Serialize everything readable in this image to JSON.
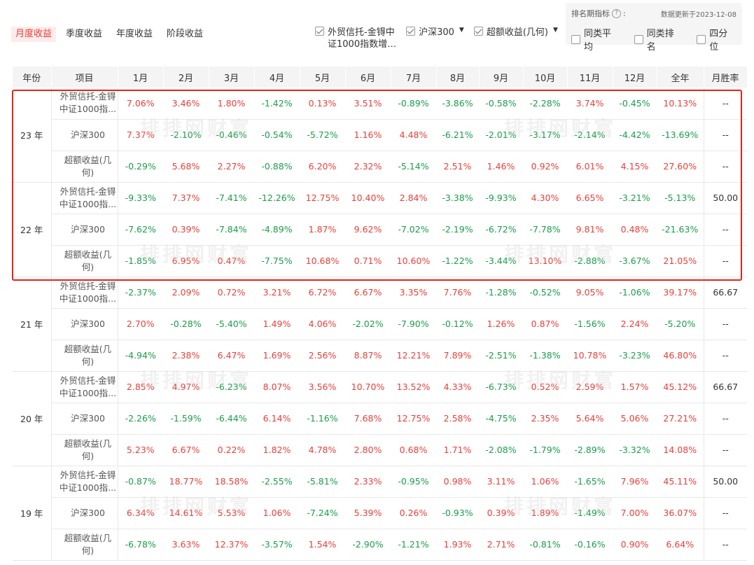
{
  "tabs": [
    "月度收益",
    "季度收益",
    "年度收益",
    "阶段收益"
  ],
  "legend": [
    {
      "label": "外贸信托-金锝中证1000指数增…",
      "line1": "外贸信托-金锝中",
      "line2": "证1000指数增…",
      "checked": true,
      "dropdown": false
    },
    {
      "label": "沪深300",
      "checked": true,
      "dropdown": true
    },
    {
      "label": "超额收益(几何)",
      "checked": true,
      "dropdown": true
    }
  ],
  "rank_panel": {
    "title": "排名期指标",
    "help": "?",
    "colon": ":",
    "update": "数据更新于2023-12-08",
    "options": [
      "同类平均",
      "同类排名",
      "四分位"
    ]
  },
  "watermark": "排排网财富",
  "colors": {
    "accent": "#e8403a",
    "positive": "#e8403a",
    "negative": "#1a9d4a",
    "highlight": "#e5221c"
  },
  "table": {
    "headers": [
      "年份",
      "项目",
      "1月",
      "2月",
      "3月",
      "4月",
      "5月",
      "6月",
      "7月",
      "8月",
      "9月",
      "10月",
      "11月",
      "12月",
      "全年",
      "月胜率"
    ],
    "groups": [
      {
        "year": "23 年",
        "rows": [
          {
            "item": [
              "外贸信托-金锝",
              "中证1000指..."
            ],
            "values": [
              "7.06%",
              "3.46%",
              "1.80%",
              "-1.42%",
              "0.13%",
              "3.51%",
              "-0.89%",
              "-3.86%",
              "-0.58%",
              "-2.28%",
              "3.74%",
              "-0.45%",
              "10.13%"
            ],
            "winrate": "--"
          },
          {
            "item": [
              "沪深300"
            ],
            "values": [
              "7.37%",
              "-2.10%",
              "-0.46%",
              "-0.54%",
              "-5.72%",
              "1.16%",
              "4.48%",
              "-6.21%",
              "-2.01%",
              "-3.17%",
              "-2.14%",
              "-4.42%",
              "-13.69%"
            ],
            "winrate": "--"
          },
          {
            "item": [
              "超额收益(几何)"
            ],
            "values": [
              "-0.29%",
              "5.68%",
              "2.27%",
              "-0.88%",
              "6.20%",
              "2.32%",
              "-5.14%",
              "2.51%",
              "1.46%",
              "0.92%",
              "6.01%",
              "4.15%",
              "27.60%"
            ],
            "winrate": "--"
          }
        ]
      },
      {
        "year": "22 年",
        "rows": [
          {
            "item": [
              "外贸信托-金锝",
              "中证1000指..."
            ],
            "values": [
              "-9.33%",
              "7.37%",
              "-7.41%",
              "-12.26%",
              "12.75%",
              "10.40%",
              "2.84%",
              "-3.38%",
              "-9.93%",
              "4.30%",
              "6.65%",
              "-3.21%",
              "-5.13%"
            ],
            "winrate": "50.00"
          },
          {
            "item": [
              "沪深300"
            ],
            "values": [
              "-7.62%",
              "0.39%",
              "-7.84%",
              "-4.89%",
              "1.87%",
              "9.62%",
              "-7.02%",
              "-2.19%",
              "-6.72%",
              "-7.78%",
              "9.81%",
              "0.48%",
              "-21.63%"
            ],
            "winrate": "--"
          },
          {
            "item": [
              "超额收益(几何)"
            ],
            "values": [
              "-1.85%",
              "6.95%",
              "0.47%",
              "-7.75%",
              "10.68%",
              "0.71%",
              "10.60%",
              "-1.22%",
              "-3.44%",
              "13.10%",
              "-2.88%",
              "-3.67%",
              "21.05%"
            ],
            "winrate": "--"
          }
        ]
      },
      {
        "year": "21 年",
        "rows": [
          {
            "item": [
              "外贸信托-金锝",
              "中证1000指..."
            ],
            "values": [
              "-2.37%",
              "2.09%",
              "0.72%",
              "3.21%",
              "6.72%",
              "6.67%",
              "3.35%",
              "7.76%",
              "-1.28%",
              "-0.52%",
              "9.05%",
              "-1.06%",
              "39.17%"
            ],
            "winrate": "66.67"
          },
          {
            "item": [
              "沪深300"
            ],
            "values": [
              "2.70%",
              "-0.28%",
              "-5.40%",
              "1.49%",
              "4.06%",
              "-2.02%",
              "-7.90%",
              "-0.12%",
              "1.26%",
              "0.87%",
              "-1.56%",
              "2.24%",
              "-5.20%"
            ],
            "winrate": "--"
          },
          {
            "item": [
              "超额收益(几何)"
            ],
            "values": [
              "-4.94%",
              "2.38%",
              "6.47%",
              "1.69%",
              "2.56%",
              "8.87%",
              "12.21%",
              "7.89%",
              "-2.51%",
              "-1.38%",
              "10.78%",
              "-3.23%",
              "46.80%"
            ],
            "winrate": "--"
          }
        ]
      },
      {
        "year": "20 年",
        "rows": [
          {
            "item": [
              "外贸信托-金锝",
              "中证1000指..."
            ],
            "values": [
              "2.85%",
              "4.97%",
              "-6.23%",
              "8.07%",
              "3.56%",
              "10.70%",
              "13.52%",
              "4.33%",
              "-6.73%",
              "0.52%",
              "2.59%",
              "1.57%",
              "45.12%"
            ],
            "winrate": "66.67"
          },
          {
            "item": [
              "沪深300"
            ],
            "values": [
              "-2.26%",
              "-1.59%",
              "-6.44%",
              "6.14%",
              "-1.16%",
              "7.68%",
              "12.75%",
              "2.58%",
              "-4.75%",
              "2.35%",
              "5.64%",
              "5.06%",
              "27.21%"
            ],
            "winrate": "--"
          },
          {
            "item": [
              "超额收益(几何)"
            ],
            "values": [
              "5.23%",
              "6.67%",
              "0.22%",
              "1.82%",
              "4.78%",
              "2.80%",
              "0.68%",
              "1.71%",
              "-2.08%",
              "-1.79%",
              "-2.89%",
              "-3.32%",
              "14.08%"
            ],
            "winrate": "--"
          }
        ]
      },
      {
        "year": "19 年",
        "rows": [
          {
            "item": [
              "外贸信托-金锝",
              "中证1000指..."
            ],
            "values": [
              "-0.87%",
              "18.77%",
              "18.58%",
              "-2.55%",
              "-5.81%",
              "2.33%",
              "-0.95%",
              "0.98%",
              "3.11%",
              "1.06%",
              "-1.65%",
              "7.96%",
              "45.11%"
            ],
            "winrate": "50.00"
          },
          {
            "item": [
              "沪深300"
            ],
            "values": [
              "6.34%",
              "14.61%",
              "5.53%",
              "1.06%",
              "-7.24%",
              "5.39%",
              "0.26%",
              "-0.93%",
              "0.39%",
              "1.89%",
              "-1.49%",
              "7.00%",
              "36.07%"
            ],
            "winrate": "--"
          },
          {
            "item": [
              "超额收益(几何)"
            ],
            "values": [
              "-6.78%",
              "3.63%",
              "12.37%",
              "-3.57%",
              "1.54%",
              "-2.90%",
              "-1.21%",
              "1.93%",
              "2.71%",
              "-0.81%",
              "-0.16%",
              "0.90%",
              "6.64%"
            ],
            "winrate": "--"
          }
        ]
      }
    ]
  }
}
